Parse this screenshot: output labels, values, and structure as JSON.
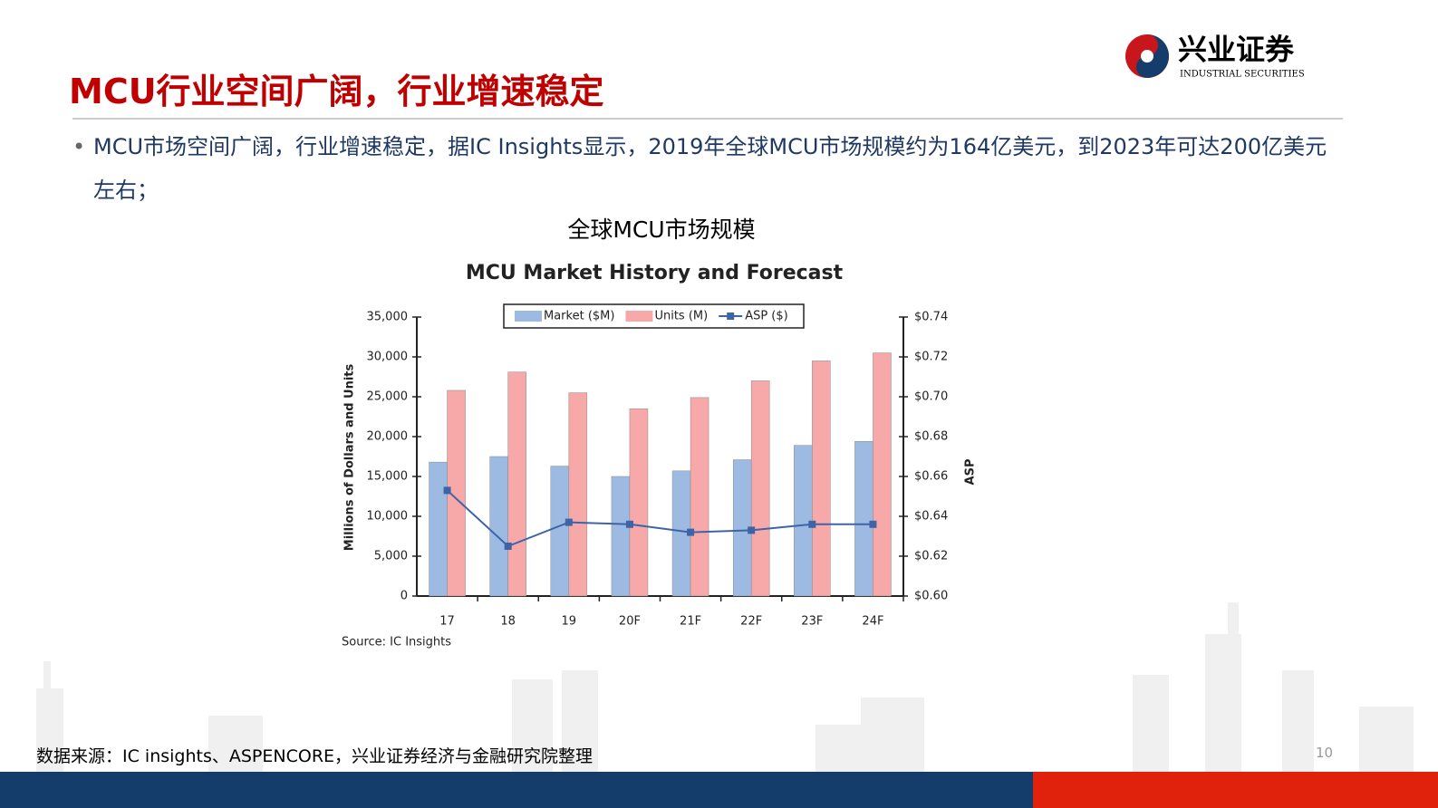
{
  "header": {
    "title": "MCU行业空间广阔，行业增速稳定",
    "logo_name": "兴业证券",
    "logo_subtitle": "INDUSTRIAL SECURITIES"
  },
  "bullet": "MCU市场空间广阔，行业增速稳定，据IC Insights显示，2019年全球MCU市场规模约为164亿美元，到2023年可达200亿美元左右；",
  "chart_caption": "全球MCU市场规模",
  "footer": {
    "source": "数据来源：IC insights、ASPENCORE，兴业证券经济与金融研究院整理",
    "page_number": 10
  },
  "chart_data": {
    "type": "bar",
    "title": "MCU Market History and Forecast",
    "y_label": "Millions of Dollars and Units",
    "y2_label": "ASP",
    "source": "Source: IC Insights",
    "categories": [
      "17",
      "18",
      "19",
      "20F",
      "21F",
      "22F",
      "23F",
      "24F"
    ],
    "series": [
      {
        "name": "Market ($M)",
        "color": "#9dbbe2",
        "values": [
          16800,
          17500,
          16300,
          15000,
          15700,
          17100,
          18900,
          19400
        ]
      },
      {
        "name": "Units (M)",
        "color": "#f7a8a8",
        "values": [
          25800,
          28100,
          25500,
          23500,
          24900,
          27000,
          29500,
          30500
        ]
      },
      {
        "name": "ASP ($)",
        "color": "#3e64a8",
        "type": "line",
        "axis": "y2",
        "values": [
          0.653,
          0.625,
          0.637,
          0.636,
          0.632,
          0.633,
          0.636,
          0.636
        ]
      }
    ],
    "ylim": [
      0,
      35000
    ],
    "yticks": [
      0,
      {
        "value": 5000,
        "label": "5,000"
      },
      {
        "value": 10000,
        "label": "10,000"
      },
      {
        "value": 15000,
        "label": "15,000"
      },
      {
        "value": 20000,
        "label": "20,000"
      },
      {
        "value": 25000,
        "label": "25,000"
      },
      {
        "value": 30000,
        "label": "30,000"
      },
      {
        "value": 35000,
        "label": "35,000"
      }
    ],
    "y2lim": [
      0.6,
      0.74
    ],
    "y2ticks": [
      {
        "value": 0.6,
        "label": "$0.60"
      },
      {
        "value": 0.62,
        "label": "$0.62"
      },
      {
        "value": 0.64,
        "label": "$0.64"
      },
      {
        "value": 0.66,
        "label": "$0.66"
      },
      {
        "value": 0.68,
        "label": "$0.68"
      },
      {
        "value": 0.7,
        "label": "$0.70"
      },
      {
        "value": 0.72,
        "label": "$0.72"
      },
      {
        "value": 0.74,
        "label": "$0.74"
      }
    ],
    "grid": false,
    "legend": "top"
  }
}
